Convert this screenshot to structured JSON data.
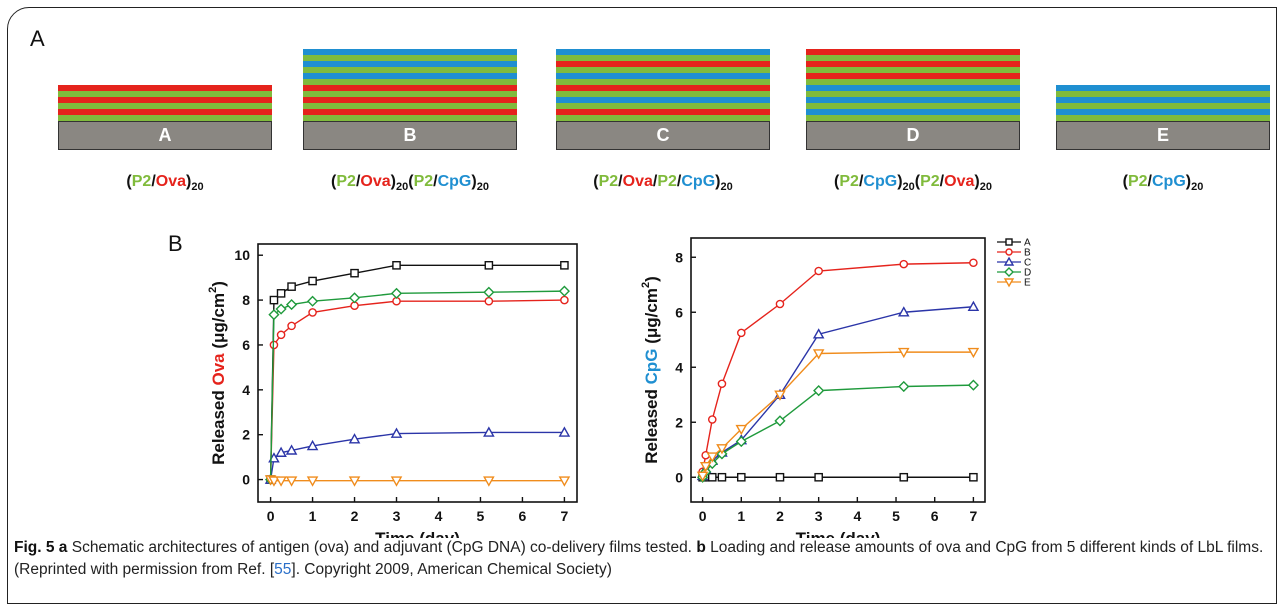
{
  "panel_a": {
    "letter": "A",
    "colors": {
      "green": "#80bb3c",
      "red": "#e5231c",
      "blue": "#1f8fd1",
      "substrate": "#8a8782"
    },
    "stacks": [
      {
        "substrate_label": "A",
        "layers": [
          "red",
          "green",
          "red",
          "green",
          "red",
          "green"
        ],
        "formula": [
          {
            "t": "(",
            "c": "blk"
          },
          {
            "t": "P2",
            "c": "green"
          },
          {
            "t": "/",
            "c": "blk"
          },
          {
            "t": "Ova",
            "c": "red"
          },
          {
            "t": ")",
            "c": "blk"
          },
          {
            "t": "20",
            "c": "sub"
          }
        ]
      },
      {
        "substrate_label": "B",
        "layers": [
          "blue",
          "green",
          "blue",
          "green",
          "blue",
          "green",
          "red",
          "green",
          "red",
          "green",
          "red",
          "green"
        ],
        "formula": [
          {
            "t": "(",
            "c": "blk"
          },
          {
            "t": "P2",
            "c": "green"
          },
          {
            "t": "/",
            "c": "blk"
          },
          {
            "t": "Ova",
            "c": "red"
          },
          {
            "t": ")",
            "c": "blk"
          },
          {
            "t": "20",
            "c": "sub"
          },
          {
            "t": "(",
            "c": "blk"
          },
          {
            "t": "P2",
            "c": "green"
          },
          {
            "t": "/",
            "c": "blk"
          },
          {
            "t": "CpG",
            "c": "blue"
          },
          {
            "t": ")",
            "c": "blk"
          },
          {
            "t": "20",
            "c": "sub"
          }
        ]
      },
      {
        "substrate_label": "C",
        "layers": [
          "blue",
          "green",
          "red",
          "green",
          "blue",
          "green",
          "red",
          "green",
          "blue",
          "green",
          "red",
          "green"
        ],
        "formula": [
          {
            "t": "(",
            "c": "blk"
          },
          {
            "t": "P2",
            "c": "green"
          },
          {
            "t": "/",
            "c": "blk"
          },
          {
            "t": "Ova",
            "c": "red"
          },
          {
            "t": "/",
            "c": "blk"
          },
          {
            "t": "P2",
            "c": "green"
          },
          {
            "t": "/",
            "c": "blk"
          },
          {
            "t": "CpG",
            "c": "blue"
          },
          {
            "t": ")",
            "c": "blk"
          },
          {
            "t": "20",
            "c": "sub"
          }
        ]
      },
      {
        "substrate_label": "D",
        "layers": [
          "red",
          "green",
          "red",
          "green",
          "red",
          "green",
          "blue",
          "green",
          "blue",
          "green",
          "blue",
          "green"
        ],
        "formula": [
          {
            "t": "(",
            "c": "blk"
          },
          {
            "t": "P2",
            "c": "green"
          },
          {
            "t": "/",
            "c": "blk"
          },
          {
            "t": "CpG",
            "c": "blue"
          },
          {
            "t": ")",
            "c": "blk"
          },
          {
            "t": "20",
            "c": "sub"
          },
          {
            "t": "(",
            "c": "blk"
          },
          {
            "t": "P2",
            "c": "green"
          },
          {
            "t": "/",
            "c": "blk"
          },
          {
            "t": "Ova",
            "c": "red"
          },
          {
            "t": ")",
            "c": "blk"
          },
          {
            "t": "20",
            "c": "sub"
          }
        ]
      },
      {
        "substrate_label": "E",
        "layers": [
          "blue",
          "green",
          "blue",
          "green",
          "blue",
          "green"
        ],
        "formula": [
          {
            "t": "(",
            "c": "blk"
          },
          {
            "t": "P2",
            "c": "green"
          },
          {
            "t": "/",
            "c": "blk"
          },
          {
            "t": "CpG",
            "c": "blue"
          },
          {
            "t": ")",
            "c": "blk"
          },
          {
            "t": "20",
            "c": "sub"
          }
        ]
      }
    ]
  },
  "panel_b": {
    "letter": "B"
  },
  "chart_data": [
    {
      "type": "line",
      "ylabel_parts": [
        {
          "t": "Released ",
          "c": "#111"
        },
        {
          "t": "Ova",
          "c": "#e5231c"
        },
        {
          "t": " (μg/cm",
          "c": "#111"
        },
        {
          "t": "2",
          "c": "sup"
        },
        {
          "t": ")",
          "c": "#111"
        }
      ],
      "xlabel": "Time (day)",
      "xlim": [
        -0.3,
        7.3
      ],
      "ylim": [
        -1,
        10.5
      ],
      "xticks": [
        0,
        1,
        2,
        3,
        4,
        5,
        6,
        7
      ],
      "yticks": [
        0,
        2,
        4,
        6,
        8,
        10
      ],
      "series": [
        {
          "marker": "square",
          "color": "#111111",
          "x": [
            0,
            0.08,
            0.25,
            0.5,
            1,
            2,
            3,
            5.2,
            7
          ],
          "y": [
            0,
            8.0,
            8.3,
            8.6,
            8.85,
            9.2,
            9.55,
            9.55,
            9.55
          ]
        },
        {
          "marker": "circle",
          "color": "#e5231c",
          "x": [
            0,
            0.08,
            0.25,
            0.5,
            1,
            2,
            3,
            5.2,
            7
          ],
          "y": [
            0,
            6.0,
            6.45,
            6.85,
            7.45,
            7.75,
            7.95,
            7.95,
            8.0
          ]
        },
        {
          "marker": "triangle-up",
          "color": "#2b35a8",
          "x": [
            0,
            0.08,
            0.25,
            0.5,
            1,
            2,
            3,
            5.2,
            7
          ],
          "y": [
            0,
            0.95,
            1.2,
            1.3,
            1.5,
            1.8,
            2.05,
            2.1,
            2.1
          ]
        },
        {
          "marker": "diamond",
          "color": "#1f9a3c",
          "x": [
            0,
            0.08,
            0.25,
            0.5,
            1,
            2,
            3,
            5.2,
            7
          ],
          "y": [
            0,
            7.35,
            7.6,
            7.8,
            7.95,
            8.1,
            8.3,
            8.35,
            8.4
          ]
        },
        {
          "marker": "triangle-down",
          "color": "#f08c1c",
          "x": [
            0,
            0.08,
            0.25,
            0.5,
            1,
            2,
            3,
            5.2,
            7
          ],
          "y": [
            0,
            -0.05,
            -0.05,
            -0.05,
            -0.05,
            -0.05,
            -0.05,
            -0.05,
            -0.05
          ]
        }
      ]
    },
    {
      "type": "line",
      "ylabel_parts": [
        {
          "t": "Released ",
          "c": "#111"
        },
        {
          "t": "CpG",
          "c": "#1f8fd1"
        },
        {
          "t": " (μg/cm",
          "c": "#111"
        },
        {
          "t": "2",
          "c": "sup"
        },
        {
          "t": ")",
          "c": "#111"
        }
      ],
      "xlabel": "Time (day)",
      "xlim": [
        -0.3,
        7.3
      ],
      "ylim": [
        -0.9,
        8.7
      ],
      "xticks": [
        0,
        1,
        2,
        3,
        4,
        5,
        6,
        7
      ],
      "yticks": [
        0,
        2,
        4,
        6,
        8
      ],
      "legend": {
        "position": "top-right",
        "entries": [
          "A",
          "B",
          "C",
          "D",
          "E"
        ]
      },
      "series": [
        {
          "name": "A",
          "marker": "square",
          "color": "#111111",
          "x": [
            0,
            0.08,
            0.25,
            0.5,
            1,
            2,
            3,
            5.2,
            7
          ],
          "y": [
            0,
            0,
            0,
            0,
            0,
            0,
            0,
            0,
            0
          ]
        },
        {
          "name": "B",
          "marker": "circle",
          "color": "#e5231c",
          "x": [
            0,
            0.08,
            0.25,
            0.5,
            1,
            2,
            3,
            5.2,
            7
          ],
          "y": [
            0.2,
            0.8,
            2.1,
            3.4,
            5.25,
            6.3,
            7.5,
            7.75,
            7.8
          ]
        },
        {
          "name": "C",
          "marker": "triangle-up",
          "color": "#2b35a8",
          "x": [
            0,
            0.08,
            0.25,
            0.5,
            1,
            2,
            3,
            5.2,
            7
          ],
          "y": [
            0.05,
            0.3,
            0.6,
            0.9,
            1.35,
            3.0,
            5.2,
            6.0,
            6.2
          ]
        },
        {
          "name": "D",
          "marker": "diamond",
          "color": "#1f9a3c",
          "x": [
            0,
            0.08,
            0.25,
            0.5,
            1,
            2,
            3,
            5.2,
            7
          ],
          "y": [
            0,
            0.2,
            0.5,
            0.85,
            1.3,
            2.05,
            3.15,
            3.3,
            3.35
          ]
        },
        {
          "name": "E",
          "marker": "triangle-down",
          "color": "#f08c1c",
          "x": [
            0,
            0.08,
            0.25,
            0.5,
            1,
            2,
            3,
            5.2,
            7
          ],
          "y": [
            0.05,
            0.4,
            0.75,
            1.05,
            1.75,
            3.0,
            4.5,
            4.55,
            4.55
          ]
        }
      ]
    }
  ],
  "caption": {
    "fig_label": "Fig. 5",
    "a_letter": "a",
    "a_text": " Schematic architectures of antigen (ova) and adjuvant (CpG DNA) co-delivery films tested. ",
    "b_letter": "b",
    "b_text": " Loading and release amounts of ova and CpG from 5 different kinds of LbL films. (Reprinted with permission from Ref. [",
    "ref": "55",
    "end_text": "]. Copyright 2009, American Chemical Society)"
  }
}
